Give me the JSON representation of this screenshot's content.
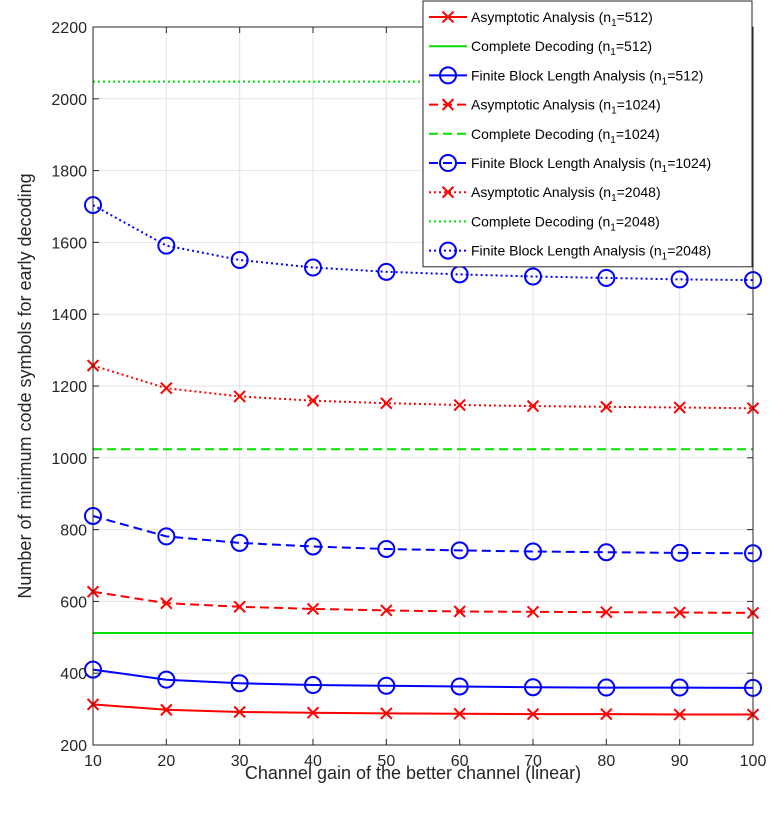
{
  "chart_data": {
    "type": "line",
    "xlabel": "Channel gain of the better channel (linear)",
    "ylabel": "Number of minimum code symbols for early decoding",
    "xlim": [
      10,
      100
    ],
    "ylim": [
      200,
      2200
    ],
    "xticks": [
      "10",
      "20",
      "30",
      "40",
      "50",
      "60",
      "70",
      "80",
      "90",
      "100"
    ],
    "yticks": [
      "200",
      "400",
      "600",
      "800",
      "1000",
      "1200",
      "1400",
      "1600",
      "1800",
      "2000",
      "2200"
    ],
    "grid": true,
    "legend_position": "top-right",
    "x": [
      10,
      20,
      30,
      40,
      50,
      60,
      70,
      80,
      90,
      100
    ],
    "series": [
      {
        "name": "Asymptotic Analysis (n=512)",
        "legend_prefix": "Asymptotic Analysis (n",
        "legend_sub": "1",
        "legend_suffix": "=512)",
        "color": "#ff0000",
        "dash": "solid",
        "marker": "x",
        "values": [
          313,
          298,
          292,
          290,
          288,
          287,
          286,
          286,
          285,
          285
        ]
      },
      {
        "name": "Complete Decoding (n=512)",
        "legend_prefix": "Complete Decoding (n",
        "legend_sub": "1",
        "legend_suffix": "=512)",
        "color": "#00e000",
        "dash": "solid",
        "marker": "none",
        "values": [
          512,
          512,
          512,
          512,
          512,
          512,
          512,
          512,
          512,
          512
        ]
      },
      {
        "name": "Finite Block Length Analysis (n=512)",
        "legend_prefix": "Finite Block Length Analysis (n",
        "legend_sub": "1",
        "legend_suffix": "=512)",
        "color": "#0000ff",
        "dash": "solid",
        "marker": "o",
        "values": [
          410,
          382,
          372,
          367,
          365,
          363,
          361,
          360,
          360,
          359
        ]
      },
      {
        "name": "Asymptotic Analysis (n=1024)",
        "legend_prefix": "Asymptotic Analysis (n",
        "legend_sub": "1",
        "legend_suffix": "=1024)",
        "color": "#ff0000",
        "dash": "dashed",
        "marker": "x",
        "values": [
          627,
          595,
          585,
          579,
          575,
          572,
          571,
          570,
          569,
          568
        ]
      },
      {
        "name": "Complete Decoding (n=1024)",
        "legend_prefix": "Complete Decoding (n",
        "legend_sub": "1",
        "legend_suffix": "=1024)",
        "color": "#00e000",
        "dash": "dashed",
        "marker": "none",
        "values": [
          1024,
          1024,
          1024,
          1024,
          1024,
          1024,
          1024,
          1024,
          1024,
          1024
        ]
      },
      {
        "name": "Finite Block Length Analysis (n=1024)",
        "legend_prefix": "Finite Block Length Analysis (n",
        "legend_sub": "1",
        "legend_suffix": "=1024)",
        "color": "#0000ff",
        "dash": "dashed",
        "marker": "o",
        "values": [
          838,
          781,
          763,
          753,
          746,
          742,
          739,
          737,
          735,
          734
        ]
      },
      {
        "name": "Asymptotic Analysis (n=2048)",
        "legend_prefix": "Asymptotic Analysis (n",
        "legend_sub": "1",
        "legend_suffix": "=2048)",
        "color": "#ff0000",
        "dash": "dotted",
        "marker": "x",
        "values": [
          1257,
          1194,
          1171,
          1159,
          1152,
          1147,
          1144,
          1142,
          1140,
          1138
        ]
      },
      {
        "name": "Complete Decoding (n=2048)",
        "legend_prefix": "Complete Decoding (n",
        "legend_sub": "1",
        "legend_suffix": "=2048)",
        "color": "#00e000",
        "dash": "dotted",
        "marker": "none",
        "values": [
          2048,
          2048,
          2048,
          2048,
          2048,
          2048,
          2048,
          2048,
          2048,
          2048
        ]
      },
      {
        "name": "Finite Block Length Analysis (n=2048)",
        "legend_prefix": "Finite Block Length Analysis (n",
        "legend_sub": "1",
        "legend_suffix": "=2048)",
        "color": "#0000ff",
        "dash": "dotted",
        "marker": "o",
        "values": [
          1704,
          1591,
          1551,
          1530,
          1518,
          1511,
          1505,
          1501,
          1497,
          1495
        ]
      }
    ]
  }
}
